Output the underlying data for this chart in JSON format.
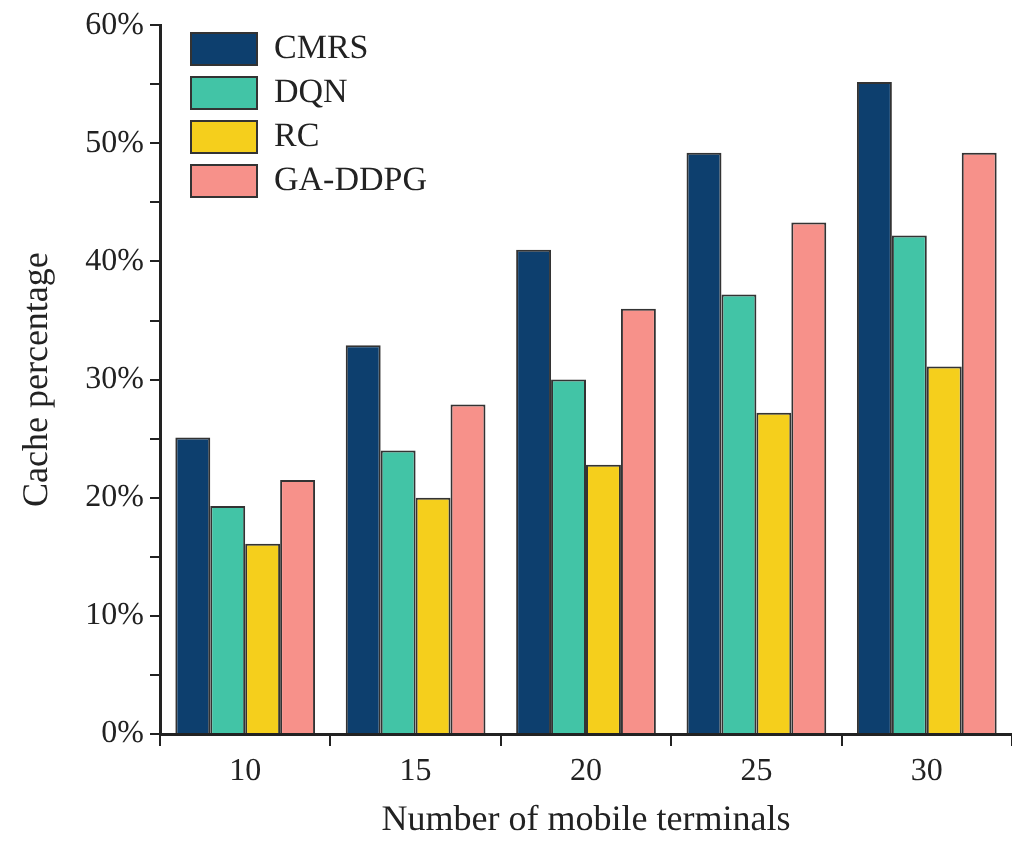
{
  "chart_data": {
    "type": "bar",
    "xlabel": "Number of mobile terminals",
    "ylabel": "Cache percentage",
    "categories": [
      "10",
      "15",
      "20",
      "25",
      "30"
    ],
    "series": [
      {
        "name": "CMRS",
        "color": "#0d3f6e",
        "values": [
          25.1,
          32.9,
          41.0,
          49.2,
          55.2
        ]
      },
      {
        "name": "DQN",
        "color": "#42c4a6",
        "values": [
          19.3,
          24.0,
          30.0,
          37.2,
          42.2
        ]
      },
      {
        "name": "RC",
        "color": "#f5cf1c",
        "values": [
          16.1,
          20.0,
          22.8,
          27.2,
          31.1
        ]
      },
      {
        "name": "GA-DDPG",
        "color": "#f7918a",
        "values": [
          21.5,
          27.9,
          36.0,
          43.3,
          49.2
        ]
      }
    ],
    "ylim": [
      0,
      60
    ],
    "yticks": [
      {
        "value": 0,
        "label": "0%"
      },
      {
        "value": 5,
        "label": null
      },
      {
        "value": 10,
        "label": "10%"
      },
      {
        "value": 15,
        "label": null
      },
      {
        "value": 20,
        "label": "20%"
      },
      {
        "value": 25,
        "label": null
      },
      {
        "value": 30,
        "label": "30%"
      },
      {
        "value": 35,
        "label": null
      },
      {
        "value": 40,
        "label": "40%"
      },
      {
        "value": 45,
        "label": null
      },
      {
        "value": 50,
        "label": "50%"
      },
      {
        "value": 55,
        "label": null
      },
      {
        "value": 60,
        "label": "60%"
      }
    ],
    "grid": false,
    "legend": "top left"
  }
}
